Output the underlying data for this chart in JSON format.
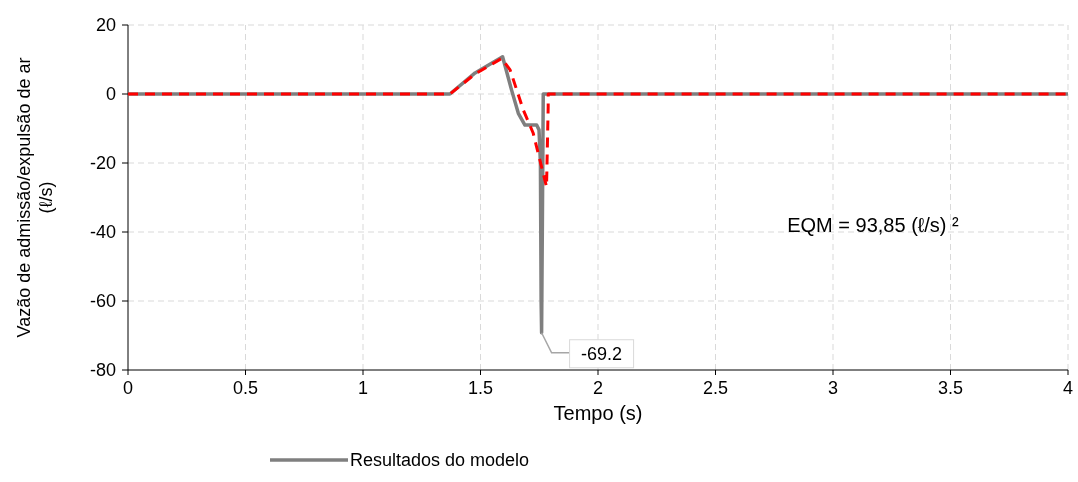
{
  "chart_data": {
    "type": "line",
    "xlabel": "Tempo (s)",
    "ylabel": "Vazão de admissão/expulsão de ar (ℓ/s)",
    "xlim": [
      0,
      4
    ],
    "xticks": [
      0,
      0.5,
      1,
      1.5,
      2,
      2.5,
      3,
      3.5,
      4
    ],
    "ylim": [
      -80,
      20
    ],
    "yticks": [
      -80,
      -60,
      -40,
      -20,
      0,
      20
    ],
    "grid": true,
    "legend": "bottom",
    "series": [
      {
        "name": "Resultados do modelo",
        "color": "#7f7f7f",
        "line_style": "solid",
        "x": [
          0,
          1.37,
          1.477,
          1.594,
          1.632,
          1.661,
          1.689,
          1.739,
          1.749,
          1.755,
          1.758,
          1.76,
          1.763,
          1.767,
          4
        ],
        "values": [
          0,
          0,
          6.1,
          10.8,
          1.2,
          -5.6,
          -9,
          -9,
          -10.4,
          -20,
          -60,
          -69.2,
          -40,
          0,
          0
        ]
      },
      {
        "color": "#ff0000",
        "line_style": "dashed",
        "x": [
          0,
          1.37,
          1.477,
          1.59,
          1.626,
          1.682,
          1.724,
          1.781,
          1.788,
          1.788,
          4
        ],
        "values": [
          0,
          0,
          5.8,
          10.3,
          7,
          -4.6,
          -11.3,
          -26.9,
          -3.7,
          0,
          0
        ]
      }
    ],
    "annotations": [
      {
        "text": "-69.2",
        "x": 1.76,
        "y": -69.2
      },
      "EQM = 93,85 (ℓ/s) ²"
    ]
  }
}
